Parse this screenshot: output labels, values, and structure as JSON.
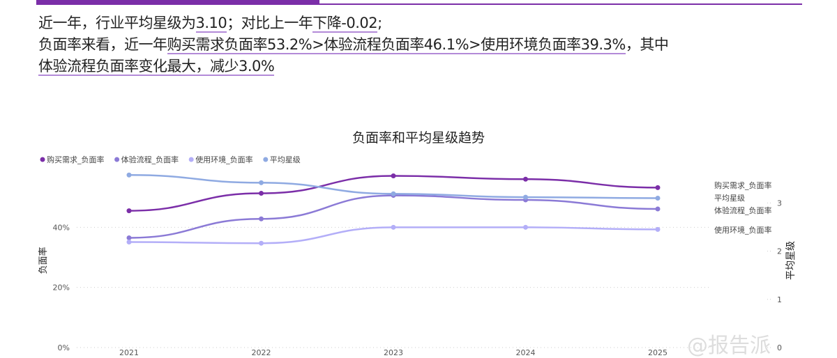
{
  "summary": {
    "l1a": "近一年，行业平均星级为",
    "l1b": "3.10",
    "l1c": "；对比上一年",
    "l1d": "下降-0.02",
    "l1e": ";",
    "l2a": "负面率来看，近一年",
    "l2b": "购买需求负面率53.2%>体验流程负面率46.1%>使用环境负面率39.3%",
    "l2c": "，其中",
    "l3a": "体验流程负面率变化最大，减少3.0%"
  },
  "watermark": "@报告派",
  "chart_data": {
    "type": "line",
    "title": "负面率和平均星级趋势",
    "categories": [
      "2021",
      "2022",
      "2023",
      "2024",
      "2025"
    ],
    "ylabel": "负面率",
    "y2label": "平均星级",
    "ylim": [
      0,
      0.6
    ],
    "yticks": [
      "0%",
      "20%",
      "40%"
    ],
    "y2lim": [
      0,
      3.6
    ],
    "y2ticks": [
      "0",
      "1",
      "2",
      "3"
    ],
    "legend": "top-left",
    "series": [
      {
        "name": "购买需求_负面率",
        "axis": "left",
        "color": "#7b2ea8",
        "values": [
          0.455,
          0.513,
          0.571,
          0.56,
          0.532
        ]
      },
      {
        "name": "体验流程_负面率",
        "axis": "left",
        "color": "#8b7ad6",
        "values": [
          0.365,
          0.428,
          0.506,
          0.491,
          0.461
        ]
      },
      {
        "name": "使用环境_负面率",
        "axis": "left",
        "color": "#b3aef8",
        "values": [
          0.351,
          0.347,
          0.4,
          0.4,
          0.393
        ]
      },
      {
        "name": "平均星级",
        "axis": "right",
        "color": "#8faae2",
        "values": [
          3.58,
          3.42,
          3.19,
          3.12,
          3.1
        ]
      }
    ]
  }
}
